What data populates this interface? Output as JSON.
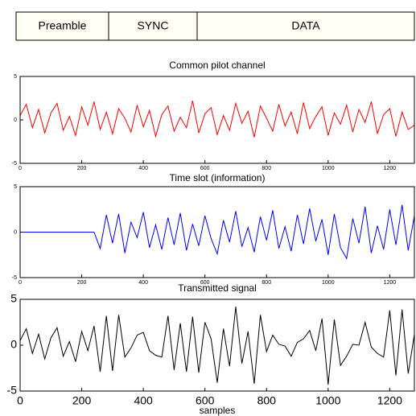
{
  "frame": {
    "fields": [
      "Preamble",
      "SYNC",
      "DATA"
    ]
  },
  "chart_data": [
    {
      "type": "line",
      "title": "Common pilot channel",
      "x": [
        0,
        20,
        40,
        60,
        80,
        100,
        120,
        140,
        160,
        180,
        200,
        220,
        240,
        260,
        280,
        300,
        320,
        340,
        360,
        380,
        400,
        420,
        440,
        460,
        480,
        500,
        520,
        540,
        560,
        580,
        600,
        620,
        640,
        660,
        680,
        700,
        720,
        740,
        760,
        780,
        800,
        820,
        840,
        860,
        880,
        900,
        920,
        940,
        960,
        980,
        1000,
        1020,
        1040,
        1060,
        1080,
        1100,
        1120,
        1140,
        1160,
        1180,
        1200,
        1220,
        1240,
        1260,
        1280
      ],
      "series": [
        {
          "color": "#ff0000",
          "values": [
            0.5,
            1.8,
            -0.9,
            1.2,
            -1.5,
            0.8,
            1.9,
            -1.2,
            0.4,
            -1.8,
            1.5,
            -0.6,
            2.1,
            -1.1,
            0.9,
            -1.6,
            1.3,
            0.2,
            -1.4,
            1.7,
            -0.8,
            1.1,
            -1.9,
            0.6,
            1.6,
            -1.3,
            0.3,
            -0.9,
            2.2,
            -1.5,
            0.7,
            1.4,
            -1.7,
            0.5,
            -1.2,
            1.9,
            -0.4,
            1.0,
            -2.0,
            1.6,
            0.2,
            -1.3,
            1.8,
            -0.7,
            0.9,
            -1.6,
            2.0,
            -1.0,
            0.4,
            1.5,
            -1.8,
            0.8,
            -0.5,
            1.7,
            -1.4,
            1.2,
            -0.3,
            2.1,
            -1.6,
            0.6,
            1.3,
            -1.9,
            0.9,
            -1.1,
            -0.6
          ]
        }
      ],
      "xlim": [
        0,
        1280
      ],
      "xticks": [
        0,
        200,
        400,
        600,
        800,
        1000,
        1200
      ],
      "ylim": [
        -5,
        5
      ],
      "yticks": [
        -5,
        0,
        5
      ]
    },
    {
      "type": "line",
      "title": "Time slot (information)",
      "x": [
        0,
        20,
        40,
        60,
        80,
        100,
        120,
        140,
        160,
        180,
        200,
        220,
        240,
        260,
        280,
        300,
        320,
        340,
        360,
        380,
        400,
        420,
        440,
        460,
        480,
        500,
        520,
        540,
        560,
        580,
        600,
        620,
        640,
        660,
        680,
        700,
        720,
        740,
        760,
        780,
        800,
        820,
        840,
        860,
        880,
        900,
        920,
        940,
        960,
        980,
        1000,
        1020,
        1040,
        1060,
        1080,
        1100,
        1120,
        1140,
        1160,
        1180,
        1200,
        1220,
        1240,
        1260,
        1280
      ],
      "series": [
        {
          "color": "#0000ff",
          "values": [
            0,
            0,
            0,
            0,
            0,
            0,
            0,
            0,
            0,
            0,
            0,
            0,
            0,
            -1.8,
            1.9,
            -1.2,
            2.0,
            -2.3,
            1.1,
            -0.6,
            2.2,
            -1.7,
            0.8,
            -1.9,
            1.6,
            -1.4,
            2.1,
            -2.0,
            0.9,
            -1.5,
            1.8,
            -0.7,
            -2.4,
            1.3,
            -1.1,
            2.3,
            -1.6,
            0.5,
            -2.2,
            1.7,
            -0.9,
            2.4,
            -1.8,
            0.6,
            -2.1,
            1.9,
            -1.3,
            2.6,
            -1.0,
            1.4,
            -2.5,
            2.0,
            -1.7,
            -2.9,
            1.5,
            -1.2,
            2.8,
            -2.3,
            0.7,
            -1.9,
            2.5,
            -1.4,
            3.0,
            -2.0,
            1.8
          ]
        }
      ],
      "xlim": [
        0,
        1280
      ],
      "xticks": [
        0,
        200,
        400,
        600,
        800,
        1000,
        1200
      ],
      "ylim": [
        -5,
        5
      ],
      "yticks": [
        -5,
        0,
        5
      ]
    },
    {
      "type": "line",
      "title": "Transmitted signal",
      "xlabel": "samples",
      "x": [
        0,
        20,
        40,
        60,
        80,
        100,
        120,
        140,
        160,
        180,
        200,
        220,
        240,
        260,
        280,
        300,
        320,
        340,
        360,
        380,
        400,
        420,
        440,
        460,
        480,
        500,
        520,
        540,
        560,
        580,
        600,
        620,
        640,
        660,
        680,
        700,
        720,
        740,
        760,
        780,
        800,
        820,
        840,
        860,
        880,
        900,
        920,
        940,
        960,
        980,
        1000,
        1020,
        1040,
        1060,
        1080,
        1100,
        1120,
        1140,
        1160,
        1180,
        1200,
        1220,
        1240,
        1260,
        1280
      ],
      "series": [
        {
          "color": "#000000",
          "values": [
            0.5,
            1.8,
            -0.9,
            1.2,
            -1.5,
            0.8,
            1.9,
            -1.2,
            0.4,
            -1.8,
            1.5,
            -0.6,
            2.1,
            -2.9,
            3.2,
            -2.8,
            3.3,
            -1.3,
            -0.3,
            1.1,
            1.4,
            -0.6,
            -1.1,
            -1.3,
            3.2,
            -2.7,
            2.4,
            -2.9,
            3.1,
            -3.0,
            2.5,
            0.7,
            -4.1,
            1.8,
            -2.3,
            4.2,
            -2.0,
            1.5,
            -4.2,
            3.3,
            -0.7,
            1.1,
            0.1,
            -0.1,
            -1.2,
            0.3,
            0.7,
            1.6,
            -0.6,
            2.9,
            -4.3,
            2.8,
            -2.2,
            -1.2,
            0.1,
            0,
            2.5,
            -0.2,
            -0.9,
            -1.3,
            3.8,
            -3.3,
            3.9,
            -3.1,
            1.2
          ]
        }
      ],
      "xlim": [
        0,
        1280
      ],
      "xticks": [
        0,
        200,
        400,
        600,
        800,
        1000,
        1200
      ],
      "ylim": [
        -5,
        5
      ],
      "yticks": [
        -5,
        0,
        5
      ]
    }
  ]
}
